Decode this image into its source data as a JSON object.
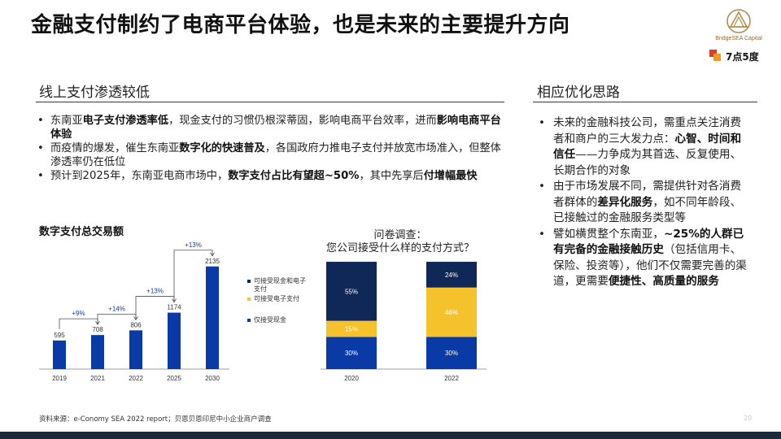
{
  "title": "金融支付制约了电商平台体验，也是未来的主要提升方向",
  "brand": {
    "logo_text": "BridgeSEA Capital",
    "badge_text": "7点5度",
    "gold": "#b08d4a"
  },
  "left": {
    "heading": "线上支付渗透较低",
    "bullets": [
      {
        "parts": [
          {
            "t": "东南亚"
          },
          {
            "t": "电子支付渗透率低",
            "b": true
          },
          {
            "t": "，现金支付的习惯仍根深蒂固，影响电商平台效率，进而"
          },
          {
            "t": "影响电商平台体验",
            "b": true
          }
        ]
      },
      {
        "parts": [
          {
            "t": "而疫情的爆发，催生东南亚"
          },
          {
            "t": "数字化的快速普及",
            "b": true
          },
          {
            "t": "，各国政府力推电子支付并放宽市场准入，但整体渗透率仍在低位"
          }
        ]
      },
      {
        "parts": [
          {
            "t": "预计到2025年，东南亚电商市场中，"
          },
          {
            "t": "数字支付占比有望超~50%",
            "b": true
          },
          {
            "t": "，其中先享后"
          },
          {
            "t": "付增幅最快",
            "b": true
          }
        ]
      }
    ]
  },
  "right": {
    "heading": "相应优化思路",
    "bullets": [
      {
        "parts": [
          {
            "t": "未来的金融科技公司，需重点关注消费者和商户的三大发力点："
          },
          {
            "t": "心智、时间和信任",
            "b": true
          },
          {
            "t": "——力争成为其首选、反复使用、长期合作的对象"
          }
        ]
      },
      {
        "parts": [
          {
            "t": "由于市场发展不同，需提供针对各消费者群体的"
          },
          {
            "t": "差异化服务",
            "b": true
          },
          {
            "t": "，如不同年龄段、已接触过的金融服务类型等"
          }
        ]
      },
      {
        "parts": [
          {
            "t": "譬如横贯整个东南亚，"
          },
          {
            "t": "~25%的人群已有完备的金融接触历史",
            "b": true
          },
          {
            "t": "（包括信用卡、保险、投资等），他们不仅需要完善的渠道，更需要"
          },
          {
            "t": "便捷性、高质量的服务",
            "b": true
          }
        ]
      }
    ]
  },
  "chart_data": [
    {
      "type": "bar",
      "title": "数字支付总交易额",
      "categories": [
        "2019",
        "2021",
        "2022",
        "2025",
        "2030"
      ],
      "values": [
        595,
        708,
        806,
        1174,
        2135
      ],
      "annotations": [
        {
          "from": "2019",
          "to": "2021",
          "label": "+9%"
        },
        {
          "from": "2021",
          "to": "2022",
          "label": "+14%"
        },
        {
          "from": "2022",
          "to": "2025",
          "label": "+13%"
        },
        {
          "from": "2025",
          "to": "2030",
          "label": "+13%"
        }
      ],
      "color": "#0a3aa6",
      "ylim": [
        0,
        2300
      ]
    },
    {
      "type": "bar",
      "stacked": true,
      "percent": true,
      "title": "问卷调查：",
      "subtitle": "您公司接受什么样的支付方式？",
      "categories": [
        "2020",
        "2022"
      ],
      "series": [
        {
          "name": "仅接受现金",
          "values": [
            30,
            30
          ],
          "labels": [
            "30%",
            "30%"
          ],
          "color": "#0a3aa6"
        },
        {
          "name": "可接受电子支付",
          "values": [
            15,
            46
          ],
          "labels": [
            "15%",
            "46%"
          ],
          "color": "#f5c22b"
        },
        {
          "name": "可接受现金和电子支付",
          "values": [
            55,
            24
          ],
          "labels": [
            "55%",
            "24%"
          ],
          "color": "#0f2858"
        }
      ],
      "legend": "left"
    }
  ],
  "source": "资料来源：e-Conomy SEA 2022 report；贝恩贝恩印尼中小企业商户调查",
  "page_number": "20"
}
